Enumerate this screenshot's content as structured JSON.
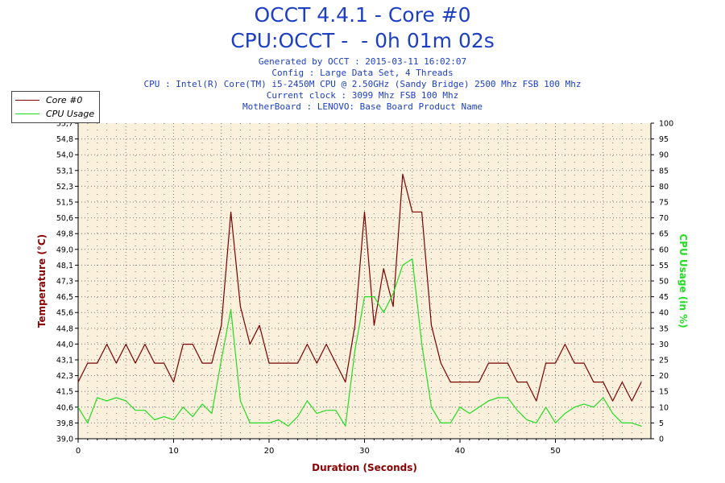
{
  "header": {
    "title1": "OCCT 4.4.1 - Core #0",
    "title2": "CPU:OCCT -  - 0h 01m 02s",
    "info": [
      "Generated by OCCT : 2015-03-11 16:02:07",
      "Config : Large Data Set, 4 Threads",
      "CPU : Intel(R) Core(TM) i5-2450M CPU @ 2.50GHz (Sandy Bridge) 2500 Mhz FSB 100 Mhz",
      "Current clock : 3099 Mhz FSB 100 Mhz",
      "MotherBoard : LENOVO: Base Board Product Name"
    ]
  },
  "legend": {
    "items": [
      {
        "label": "Core #0",
        "color": "#7b0000"
      },
      {
        "label": "CPU Usage",
        "color": "#22dd22"
      }
    ]
  },
  "colors": {
    "plot_bg": "#faf0dc",
    "grid": "#7a7a7a",
    "axis_left": "#8b0000",
    "axis_right": "#22dd22",
    "axis_x": "#8b0000"
  },
  "chart_data": {
    "type": "line",
    "xlabel": "Duration (Seconds)",
    "ylabel_left": "Temperature (°C)",
    "ylabel_right": "CPU Usage (in %)",
    "xlim": [
      0,
      60
    ],
    "ylim_left": [
      39.0,
      55.7
    ],
    "ylim_right": [
      0,
      100
    ],
    "x_ticks": [
      "0",
      "10",
      "20",
      "30",
      "40",
      "50"
    ],
    "left_ticks": [
      "39,0",
      "39,8",
      "40,6",
      "41,5",
      "42,3",
      "43,1",
      "44,0",
      "44,8",
      "45,6",
      "46,5",
      "47,3",
      "48,1",
      "49,0",
      "49,8",
      "50,6",
      "51,5",
      "52,3",
      "53,1",
      "54,0",
      "54,8",
      "55,7"
    ],
    "right_ticks": [
      "0",
      "5",
      "10",
      "15",
      "20",
      "25",
      "30",
      "35",
      "40",
      "45",
      "50",
      "55",
      "60",
      "65",
      "70",
      "75",
      "80",
      "85",
      "90",
      "95",
      "100"
    ],
    "grid": true,
    "legend_position": "top-left",
    "x": [
      0,
      1,
      2,
      3,
      4,
      5,
      6,
      7,
      8,
      9,
      10,
      11,
      12,
      13,
      14,
      15,
      16,
      17,
      18,
      19,
      20,
      21,
      22,
      23,
      24,
      25,
      26,
      27,
      28,
      29,
      30,
      31,
      32,
      33,
      34,
      35,
      36,
      37,
      38,
      39,
      40,
      41,
      42,
      43,
      44,
      45,
      46,
      47,
      48,
      49,
      50,
      51,
      52,
      53,
      54,
      55,
      56,
      57,
      58,
      59
    ],
    "series": [
      {
        "name": "Core #0",
        "axis": "left",
        "color": "#7b0000",
        "values": [
          42.0,
          43.0,
          43.0,
          44.0,
          43.0,
          44.0,
          43.0,
          44.0,
          43.0,
          43.0,
          42.0,
          44.0,
          44.0,
          43.0,
          43.0,
          45.0,
          51.0,
          46.0,
          44.0,
          45.0,
          43.0,
          43.0,
          43.0,
          43.0,
          44.0,
          43.0,
          44.0,
          43.0,
          42.0,
          45.0,
          51.0,
          45.0,
          48.0,
          46.0,
          53.0,
          51.0,
          51.0,
          45.0,
          43.0,
          42.0,
          42.0,
          42.0,
          42.0,
          43.0,
          43.0,
          43.0,
          42.0,
          42.0,
          41.0,
          43.0,
          43.0,
          44.0,
          43.0,
          43.0,
          42.0,
          42.0,
          41.0,
          42.0,
          41.0,
          42.0
        ]
      },
      {
        "name": "CPU Usage",
        "axis": "right",
        "color": "#22dd22",
        "values": [
          10,
          5,
          13,
          12,
          13,
          12,
          9,
          9,
          6,
          7,
          6,
          10,
          7,
          11,
          8,
          25,
          41,
          12,
          5,
          5,
          5,
          6,
          4,
          7,
          12,
          8,
          9,
          9,
          4,
          28,
          45,
          45,
          40,
          46,
          55,
          57,
          30,
          10,
          5,
          5,
          10,
          8,
          10,
          12,
          13,
          13,
          9,
          6,
          5,
          10,
          5,
          8,
          10,
          11,
          10,
          13,
          8,
          5,
          5,
          4
        ]
      }
    ]
  }
}
